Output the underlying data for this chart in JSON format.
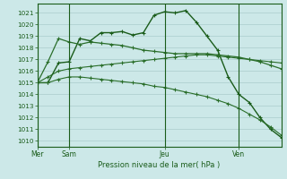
{
  "title": "Pression niveau de la mer( hPa )",
  "ylim": [
    1009.5,
    1021.8
  ],
  "yticks": [
    1010,
    1011,
    1012,
    1013,
    1014,
    1015,
    1016,
    1017,
    1018,
    1019,
    1020,
    1021
  ],
  "background_color": "#cce8e8",
  "grid_color": "#aacccc",
  "line_color_dark": "#1a5c1a",
  "line_color_mid": "#2a6e2a",
  "text_color": "#1a5c1a",
  "series1_x": [
    0,
    1,
    2,
    3,
    4,
    5,
    6,
    7,
    8,
    9,
    10,
    11,
    12,
    13,
    14,
    15,
    16,
    17,
    18,
    19,
    20,
    21,
    22,
    23
  ],
  "series1_y": [
    1015.0,
    1015.0,
    1016.7,
    1016.8,
    1018.8,
    1018.6,
    1019.3,
    1019.3,
    1019.4,
    1019.1,
    1019.3,
    1020.8,
    1021.1,
    1021.0,
    1021.2,
    1020.2,
    1019.0,
    1017.8,
    1015.5,
    1014.0,
    1013.3,
    1012.0,
    1011.0,
    1010.3
  ],
  "series2_x": [
    0,
    1,
    2,
    3,
    4,
    5,
    6,
    7,
    8,
    9,
    10,
    11,
    12,
    13,
    14,
    15,
    16,
    17,
    18,
    19,
    20,
    21,
    22,
    23
  ],
  "series2_y": [
    1015.0,
    1016.8,
    1018.8,
    1018.5,
    1018.3,
    1018.5,
    1018.4,
    1018.3,
    1018.2,
    1018.0,
    1017.8,
    1017.7,
    1017.6,
    1017.5,
    1017.5,
    1017.5,
    1017.5,
    1017.4,
    1017.3,
    1017.2,
    1017.0,
    1016.8,
    1016.5,
    1016.2
  ],
  "series3_x": [
    0,
    1,
    2,
    3,
    4,
    5,
    6,
    7,
    8,
    9,
    10,
    11,
    12,
    13,
    14,
    15,
    16,
    17,
    18,
    19,
    20,
    21,
    22,
    23
  ],
  "series3_y": [
    1015.0,
    1015.5,
    1016.0,
    1016.2,
    1016.3,
    1016.4,
    1016.5,
    1016.6,
    1016.7,
    1016.8,
    1016.9,
    1017.0,
    1017.1,
    1017.2,
    1017.3,
    1017.4,
    1017.4,
    1017.3,
    1017.2,
    1017.1,
    1017.0,
    1016.9,
    1016.8,
    1016.7
  ],
  "series4_x": [
    0,
    1,
    2,
    3,
    4,
    5,
    6,
    7,
    8,
    9,
    10,
    11,
    12,
    13,
    14,
    15,
    16,
    17,
    18,
    19,
    20,
    21,
    22,
    23
  ],
  "series4_y": [
    1015.0,
    1015.0,
    1015.3,
    1015.5,
    1015.5,
    1015.4,
    1015.3,
    1015.2,
    1015.1,
    1015.0,
    1014.9,
    1014.7,
    1014.6,
    1014.4,
    1014.2,
    1014.0,
    1013.8,
    1013.5,
    1013.2,
    1012.8,
    1012.3,
    1011.8,
    1011.2,
    1010.5
  ],
  "n_points": 24,
  "x_tick_positions": [
    0,
    3,
    12,
    19
  ],
  "x_tick_labels": [
    "Mer",
    "Sam",
    "Jeu",
    "Ven"
  ]
}
